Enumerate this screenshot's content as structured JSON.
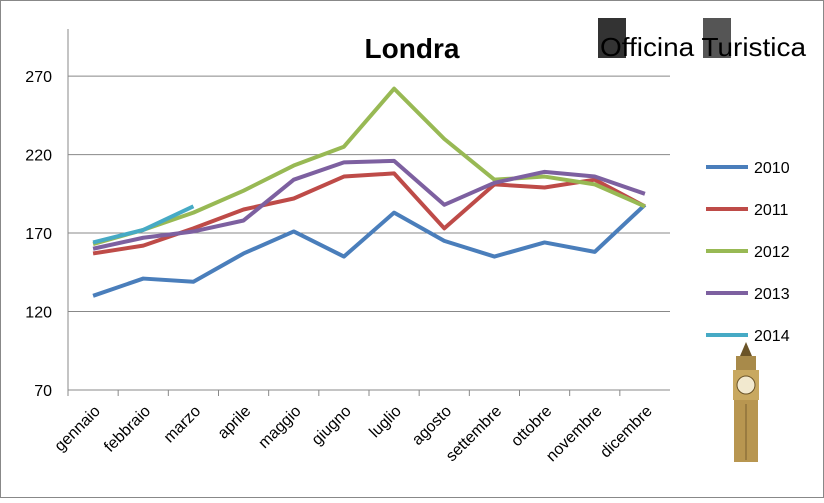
{
  "chart_data": {
    "type": "line",
    "title": "Londra",
    "logo": "Officina Turistica",
    "categories": [
      "gennaio",
      "febbraio",
      "marzo",
      "aprile",
      "maggio",
      "giugno",
      "luglio",
      "agosto",
      "settembre",
      "ottobre",
      "novembre",
      "dicembre"
    ],
    "series": [
      {
        "name": "2010",
        "color": "#4a7ebb",
        "values": [
          130,
          141,
          139,
          157,
          171,
          155,
          183,
          165,
          155,
          164,
          158,
          188
        ]
      },
      {
        "name": "2011",
        "color": "#be4b48",
        "values": [
          157,
          162,
          173,
          185,
          192,
          206,
          208,
          173,
          201,
          199,
          204,
          187
        ]
      },
      {
        "name": "2012",
        "color": "#98b954",
        "values": [
          163,
          172,
          183,
          197,
          213,
          225,
          262,
          230,
          204,
          206,
          201,
          187
        ]
      },
      {
        "name": "2013",
        "color": "#7d60a0",
        "values": [
          160,
          167,
          171,
          178,
          204,
          215,
          216,
          188,
          202,
          209,
          206,
          195
        ]
      },
      {
        "name": "2014",
        "color": "#46aac5",
        "values": [
          164,
          172,
          187,
          null,
          null,
          null,
          null,
          null,
          null,
          null,
          null,
          null
        ]
      }
    ],
    "ylim": [
      70,
      300
    ],
    "yticks": [
      70,
      120,
      170,
      220,
      270
    ],
    "grid": true,
    "legend": "right"
  }
}
